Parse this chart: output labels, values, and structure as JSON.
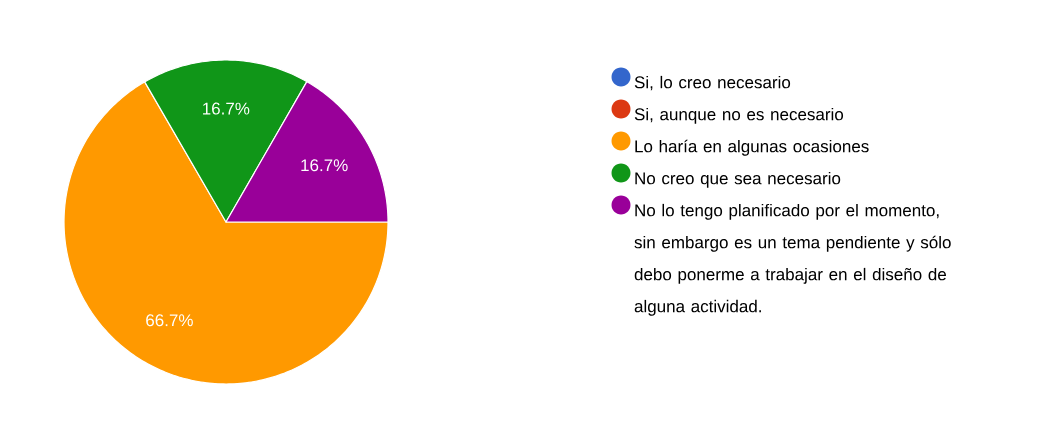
{
  "chart_data": {
    "type": "pie",
    "categories": [
      "Si, lo creo necesario",
      "Si, aunque no es necesario",
      "Lo haría en algunas ocasiones",
      "No creo que sea necesario",
      "No lo tengo planificado por el momento, sin embargo es un tema pendiente y sólo debo ponerme a trabajar en el diseño de alguna actividad."
    ],
    "values": [
      0,
      0,
      66.7,
      16.7,
      16.7
    ],
    "colors": [
      "#3366cc",
      "#dc3912",
      "#ff9900",
      "#109618",
      "#990099"
    ],
    "value_labels": [
      null,
      null,
      "66.7%",
      "16.7%",
      "16.7%"
    ],
    "legend": "right"
  }
}
